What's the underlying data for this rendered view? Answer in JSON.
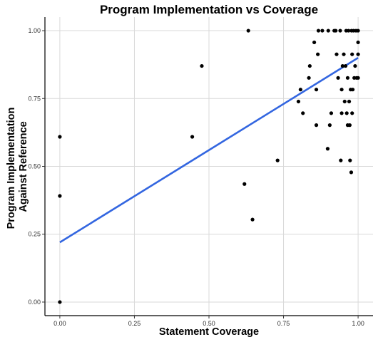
{
  "chart_data": {
    "type": "scatter",
    "title": "Program Implementation vs Coverage",
    "xlabel": "Statement Coverage",
    "ylabel": [
      "Program Implementation",
      "Against Reference"
    ],
    "xlim": [
      -0.05,
      1.05
    ],
    "ylim": [
      -0.05,
      1.05
    ],
    "xticks": [
      0,
      0.25,
      0.5,
      0.75,
      1
    ],
    "yticks": [
      0,
      0.25,
      0.5,
      0.75,
      1
    ],
    "xtick_labels": [
      "0.00",
      "0.25",
      "0.50",
      "0.75",
      "1.00"
    ],
    "ytick_labels": [
      "0.00",
      "0.25",
      "0.50",
      "0.75",
      "1.00"
    ],
    "grid": true,
    "points": [
      [
        0,
        0.609
      ],
      [
        0,
        0.391
      ],
      [
        0,
        0.0
      ],
      [
        0.444,
        0.609
      ],
      [
        0.476,
        0.87
      ],
      [
        0.619,
        0.435
      ],
      [
        0.632,
        1.0
      ],
      [
        0.646,
        0.304
      ],
      [
        0.73,
        0.522
      ],
      [
        0.8,
        0.739
      ],
      [
        0.807,
        0.783
      ],
      [
        0.815,
        0.696
      ],
      [
        0.835,
        0.826
      ],
      [
        0.838,
        0.87
      ],
      [
        0.853,
        0.957
      ],
      [
        0.86,
        0.652
      ],
      [
        0.86,
        0.783
      ],
      [
        0.865,
        0.913
      ],
      [
        0.867,
        1.0
      ],
      [
        0.88,
        1.0
      ],
      [
        0.898,
        0.565
      ],
      [
        0.9,
        1.0
      ],
      [
        0.905,
        0.652
      ],
      [
        0.91,
        0.696
      ],
      [
        0.92,
        1.0
      ],
      [
        0.925,
        1.0
      ],
      [
        0.928,
        0.913
      ],
      [
        0.933,
        0.826
      ],
      [
        0.94,
        1.0
      ],
      [
        0.942,
        0.522
      ],
      [
        0.945,
        0.696
      ],
      [
        0.945,
        0.783
      ],
      [
        0.948,
        0.87
      ],
      [
        0.952,
        0.913
      ],
      [
        0.955,
        0.739
      ],
      [
        0.958,
        0.87
      ],
      [
        0.96,
        1.0
      ],
      [
        0.962,
        0.696
      ],
      [
        0.965,
        0.652
      ],
      [
        0.965,
        0.826
      ],
      [
        0.968,
        1.0
      ],
      [
        0.97,
        0.739
      ],
      [
        0.972,
        0.652
      ],
      [
        0.973,
        0.522
      ],
      [
        0.975,
        0.783
      ],
      [
        0.977,
        0.478
      ],
      [
        0.978,
        1.0
      ],
      [
        0.98,
        0.913
      ],
      [
        0.98,
        0.696
      ],
      [
        0.982,
        0.783
      ],
      [
        0.985,
        1.0
      ],
      [
        0.987,
        0.826
      ],
      [
        0.99,
        0.87
      ],
      [
        0.993,
        1.0
      ],
      [
        0.995,
        0.826
      ],
      [
        1.0,
        1.0
      ],
      [
        1.0,
        0.957
      ],
      [
        1.0,
        0.913
      ],
      [
        1.0,
        0.826
      ]
    ],
    "trendline": {
      "x": [
        0,
        1
      ],
      "y": [
        0.22,
        0.9
      ]
    },
    "colors": {
      "points": "#000000",
      "trendline": "#3366e0",
      "grid": "#d9d9d9"
    }
  }
}
